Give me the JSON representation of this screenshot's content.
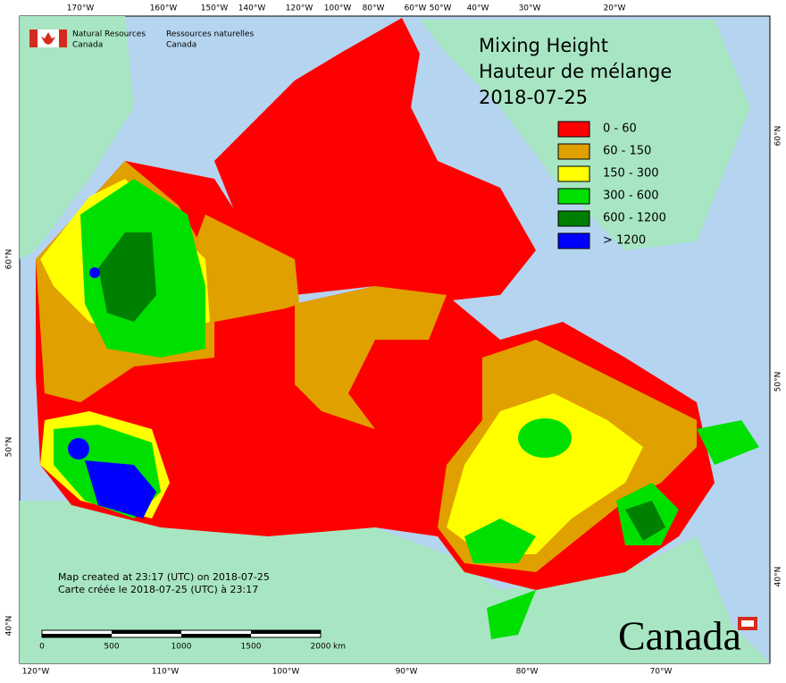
{
  "agency": {
    "en": [
      "Natural Resources",
      "Canada"
    ],
    "fr": [
      "Ressources naturelles",
      "Canada"
    ]
  },
  "title": [
    "Mixing Height",
    "Hauteur de mélange",
    "2018-07-25"
  ],
  "legend": [
    {
      "label": "0 - 60",
      "color": "#ff0000"
    },
    {
      "label": "60 - 150",
      "color": "#e0a000"
    },
    {
      "label": "150 - 300",
      "color": "#ffff00"
    },
    {
      "label": "300 - 600",
      "color": "#00e000"
    },
    {
      "label": "600 - 1200",
      "color": "#008000"
    },
    {
      "label": "> 1200",
      "color": "#0000ff"
    }
  ],
  "top_labels": [
    "170°W",
    "160°W",
    "150°W",
    "140°W",
    "120°W",
    "100°W",
    "80°W",
    "60°W",
    "50°W",
    "40°W",
    "30°W",
    "20°W"
  ],
  "bottom_labels": [
    "120°W",
    "110°W",
    "100°W",
    "90°W",
    "80°W",
    "70°W"
  ],
  "left_labels": [
    "60°N",
    "50°N",
    "40°N"
  ],
  "right_labels": [
    "60°N",
    "50°N",
    "40°N"
  ],
  "notes": [
    "Map created at 23:17 (UTC) on 2018-07-25",
    "Carte créée le 2018-07-25 (UTC) à 23:17"
  ],
  "scale": {
    "ticks": [
      0,
      500,
      1000,
      1500,
      2000
    ],
    "unit": "km"
  },
  "wordmark": "Canada"
}
